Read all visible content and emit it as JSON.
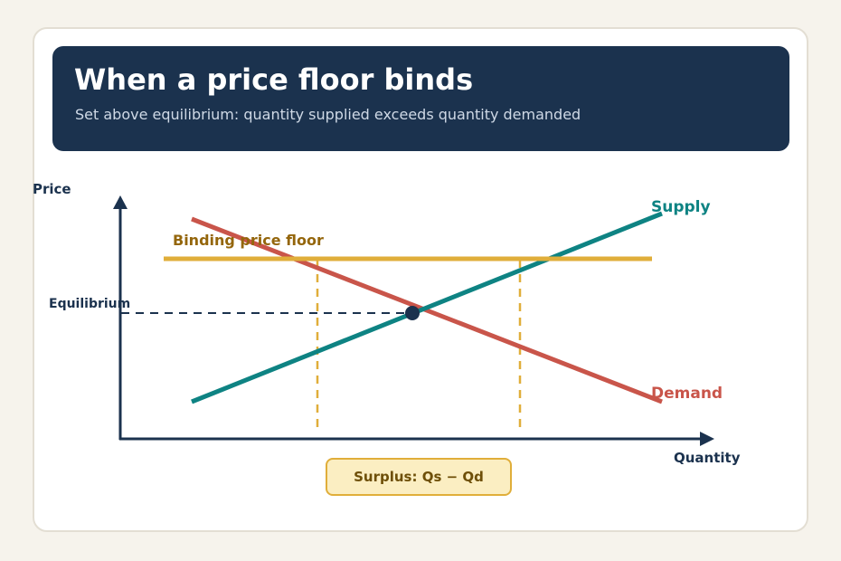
{
  "header": {
    "title": "When a price floor binds",
    "subtitle": "Set above equilibrium: quantity supplied exceeds quantity demanded"
  },
  "diagram": {
    "axis_y_label": "Price",
    "axis_x_label": "Quantity",
    "equilibrium_label": "Equilibrium",
    "floor_label": "Binding price floor",
    "supply_label": "Supply",
    "demand_label": "Demand",
    "surplus_label": "Surplus: Qs − Qd"
  },
  "colors": {
    "header_bg": "#1b324e",
    "axis": "#1b324e",
    "supply": "#0e8383",
    "demand": "#c9554a",
    "floor": "#e0ae3a",
    "floor_label": "#94660c",
    "surplus_bg": "#fbeec2"
  }
}
